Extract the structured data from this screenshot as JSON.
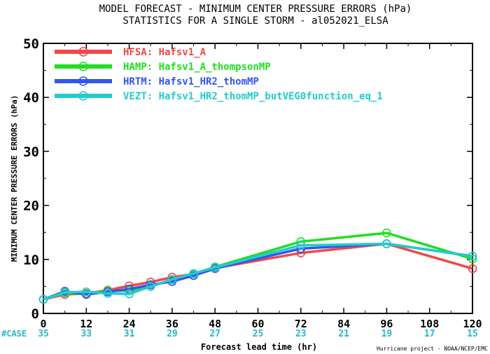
{
  "chart_data": {
    "type": "line",
    "title_line1": "MODEL FORECAST - MINIMUM CENTER PRESSURE ERRORS (hPa)",
    "title_line2": "STATISTICS FOR A SINGLE STORM - al052021_ELSA",
    "xlabel": "Forecast lead time (hr)",
    "ylabel": "MINIMUM CENTER PRESSURE ERRORS (hPa)",
    "credit": "Hurricane project - NOAA/NCEP/EMC",
    "xlim": [
      0,
      120
    ],
    "ylim": [
      0,
      50
    ],
    "x_ticks": [
      0,
      12,
      24,
      36,
      48,
      60,
      72,
      84,
      96,
      108,
      120
    ],
    "y_ticks": [
      0,
      10,
      20,
      30,
      40,
      50
    ],
    "x": [
      0,
      6,
      12,
      18,
      24,
      30,
      36,
      42,
      48,
      72,
      96,
      120
    ],
    "cases_label": "#CASE",
    "cases": [
      {
        "x": 0,
        "n": "35"
      },
      {
        "x": 12,
        "n": "33"
      },
      {
        "x": 24,
        "n": "31"
      },
      {
        "x": 36,
        "n": "29"
      },
      {
        "x": 48,
        "n": "27"
      },
      {
        "x": 60,
        "n": "25"
      },
      {
        "x": 72,
        "n": "23"
      },
      {
        "x": 84,
        "n": "21"
      },
      {
        "x": 96,
        "n": "19"
      },
      {
        "x": 108,
        "n": "17"
      },
      {
        "x": 120,
        "n": "15"
      }
    ],
    "legend_position": "top-left",
    "grid": false,
    "series": [
      {
        "name": "HFSA:  Hafsv1_A",
        "color": "#f04848",
        "values": [
          2.6,
          3.5,
          3.7,
          4.3,
          5.1,
          5.8,
          6.7,
          7.3,
          8.4,
          11.2,
          12.9,
          8.3
        ]
      },
      {
        "name": "HAMP:  Hafsv1_A_thompsonMP",
        "color": "#22dd22",
        "values": [
          2.6,
          3.8,
          3.6,
          4.2,
          4.2,
          5.0,
          6.2,
          7.3,
          8.6,
          13.3,
          14.9,
          10.1
        ]
      },
      {
        "name": "HRTM:  Hafsv1_HR2_thomMP",
        "color": "#3355ee",
        "values": [
          2.6,
          4.1,
          3.5,
          4.0,
          4.5,
          5.3,
          5.9,
          7.0,
          8.3,
          12.0,
          12.9,
          10.6
        ]
      },
      {
        "name": "VEZT:  Hafsv1_HR2_thomMP_butVEG0function_eq_1",
        "color": "#22cccc",
        "values": [
          2.6,
          3.9,
          4.0,
          3.7,
          3.6,
          5.0,
          6.3,
          7.4,
          8.5,
          12.6,
          12.9,
          10.6
        ]
      }
    ]
  }
}
